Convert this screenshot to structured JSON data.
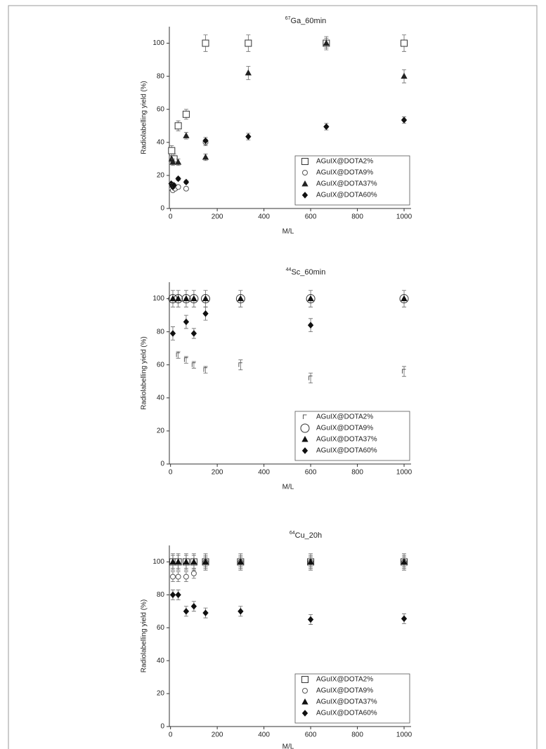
{
  "chart_data": [
    {
      "type": "scatter",
      "title_superscript": "67",
      "title": "Ga_60min",
      "x_label": "M/L",
      "y_label": "Radiolabelling yield (%)",
      "xlim": [
        -5,
        1030
      ],
      "ylim": [
        0,
        110
      ],
      "xticks": [
        0,
        200,
        400,
        600,
        800,
        1000
      ],
      "yticks": [
        0,
        20,
        40,
        60,
        80,
        100
      ],
      "legend": "lower right",
      "series": [
        {
          "name": "AGuIX@DOTA2%",
          "marker": "square-open",
          "color": "#333333",
          "x": [
            5,
            15,
            33,
            67,
            150,
            333,
            667,
            1000
          ],
          "values": [
            35,
            30,
            50,
            57,
            100,
            100,
            100,
            100
          ],
          "errors": [
            3,
            3,
            3,
            3,
            5,
            5,
            4,
            5
          ]
        },
        {
          "name": "AGuIX@DOTA9%",
          "marker": "circle-open",
          "color": "#555555",
          "x": [
            5,
            10,
            20,
            33,
            67,
            150
          ],
          "values": [
            12,
            11,
            12,
            13,
            12,
            40
          ],
          "errors": [
            1,
            1,
            1,
            1,
            1,
            2
          ]
        },
        {
          "name": "AGuIX@DOTA37%",
          "marker": "triangle",
          "color": "#222222",
          "x": [
            5,
            10,
            33,
            67,
            150,
            333,
            667,
            1000
          ],
          "values": [
            30,
            28,
            28,
            44,
            31,
            82,
            100,
            80
          ],
          "errors": [
            2,
            2,
            2,
            2,
            2,
            4,
            3,
            4
          ]
        },
        {
          "name": "AGuIX@DOTA60%",
          "marker": "diamond",
          "color": "#111111",
          "x": [
            3,
            7,
            10,
            15,
            33,
            67,
            150,
            333,
            667,
            1000
          ],
          "values": [
            15,
            14,
            13,
            14,
            18,
            16,
            41,
            43.5,
            49.5,
            53.5
          ],
          "errors": [
            1,
            1,
            1,
            1,
            1,
            1,
            2,
            2,
            2,
            2
          ]
        }
      ]
    },
    {
      "type": "scatter",
      "title_superscript": "44",
      "title": "Sc_60min",
      "x_label": "M/L",
      "y_label": "Radiolabelling yield (%)",
      "xlim": [
        -5,
        1030
      ],
      "ylim": [
        0,
        110
      ],
      "xticks": [
        0,
        200,
        400,
        600,
        800,
        1000
      ],
      "yticks": [
        0,
        20,
        40,
        60,
        80,
        100
      ],
      "legend": "lower right",
      "series": [
        {
          "name": "AGuIX@DOTA2%",
          "marker": "corner",
          "color": "#555555",
          "x": [
            33,
            67,
            100,
            150,
            300,
            600,
            1000
          ],
          "values": [
            66,
            63,
            60,
            57,
            60,
            52,
            56
          ],
          "errors": [
            2,
            2,
            2,
            2,
            3,
            3,
            3
          ]
        },
        {
          "name": "AGuIX@DOTA9%",
          "marker": "circle-open-large",
          "color": "#333333",
          "x": [
            10,
            33,
            67,
            100,
            150,
            300,
            600,
            1000
          ],
          "values": [
            100,
            100,
            100,
            100,
            100,
            100,
            100,
            100
          ],
          "errors": [
            5,
            5,
            5,
            5,
            5,
            5,
            5,
            5
          ]
        },
        {
          "name": "AGuIX@DOTA37%",
          "marker": "triangle",
          "color": "#111111",
          "x": [
            10,
            33,
            67,
            100,
            150,
            300,
            600,
            1000
          ],
          "values": [
            100,
            100,
            100,
            100,
            100,
            100,
            100,
            100
          ],
          "errors": [
            0,
            0,
            0,
            0,
            0,
            0,
            0,
            0
          ]
        },
        {
          "name": "AGuIX@DOTA60%",
          "marker": "diamond",
          "color": "#111111",
          "x": [
            10,
            67,
            100,
            150,
            600
          ],
          "values": [
            79,
            86,
            79,
            91,
            84
          ],
          "errors": [
            4,
            4,
            3,
            4,
            4
          ]
        }
      ]
    },
    {
      "type": "scatter",
      "title_superscript": "64",
      "title": "Cu_20h",
      "x_label": "M/L",
      "y_label": "Radiolabelling yield (%)",
      "xlim": [
        -5,
        1030
      ],
      "ylim": [
        0,
        110
      ],
      "xticks": [
        0,
        200,
        400,
        600,
        800,
        1000
      ],
      "yticks": [
        0,
        20,
        40,
        60,
        80,
        100
      ],
      "legend": "lower right",
      "series": [
        {
          "name": "AGuIX@DOTA2%",
          "marker": "square-open",
          "color": "#333333",
          "x": [
            10,
            33,
            67,
            100,
            150,
            300,
            600,
            1000
          ],
          "values": [
            100,
            100,
            100,
            100,
            100,
            100,
            100,
            100
          ],
          "errors": [
            5,
            5,
            5,
            5,
            5,
            5,
            5,
            5
          ]
        },
        {
          "name": "AGuIX@DOTA9%",
          "marker": "circle-open",
          "color": "#555555",
          "x": [
            10,
            33,
            67,
            100,
            150,
            300,
            600,
            1000
          ],
          "values": [
            91,
            91,
            91,
            93,
            100,
            100,
            100,
            100
          ],
          "errors": [
            3,
            3,
            3,
            3,
            3,
            3,
            3,
            3
          ]
        },
        {
          "name": "AGuIX@DOTA37%",
          "marker": "triangle",
          "color": "#111111",
          "x": [
            10,
            33,
            67,
            100,
            150,
            300,
            600,
            1000
          ],
          "values": [
            100,
            100,
            100,
            100,
            100,
            100,
            100,
            100
          ],
          "errors": [
            4,
            4,
            4,
            4,
            4,
            4,
            4,
            4
          ]
        },
        {
          "name": "AGuIX@DOTA60%",
          "marker": "diamond",
          "color": "#111111",
          "x": [
            10,
            33,
            67,
            100,
            150,
            300,
            600,
            1000
          ],
          "values": [
            80,
            80,
            70,
            73,
            69,
            70,
            65,
            65.5
          ],
          "errors": [
            3,
            3,
            3,
            3,
            3,
            3,
            3,
            3
          ]
        }
      ]
    }
  ]
}
